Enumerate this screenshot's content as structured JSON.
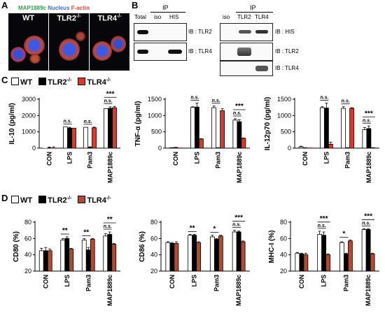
{
  "panelA": {
    "label": "A",
    "stain": [
      {
        "text": "MAP1889c",
        "color": "#2aa84a"
      },
      {
        "text": "Nucleus",
        "color": "#3a6fe0"
      },
      {
        "text": "F-actin",
        "color": "#e0483a"
      }
    ],
    "images": [
      {
        "title": "WT",
        "sup": ""
      },
      {
        "title": "TLR2",
        "sup": "-/-"
      },
      {
        "title": "TLR4",
        "sup": "-/-"
      }
    ]
  },
  "panelB": {
    "label": "B",
    "left": {
      "ip": "IP",
      "cols": [
        "Total",
        "iso",
        "HIS"
      ],
      "rows": [
        "IB : TLR2",
        "IB : TLR4"
      ]
    },
    "right": {
      "ip": "IP",
      "cols": [
        "iso",
        "TLR2",
        "TLR4"
      ],
      "rows": [
        "IB : HIS",
        "IB : TLR2",
        "IB : TLR4"
      ]
    }
  },
  "legend": {
    "items": [
      {
        "text": "WT",
        "sup": "",
        "color": "#ffffff"
      },
      {
        "text": "TLR2",
        "sup": "-/-",
        "color": "#000000"
      },
      {
        "text": "TLR4",
        "sup": "-/-",
        "color": "#d93a2b"
      }
    ],
    "itemsD": [
      {
        "text": "WT",
        "sup": "",
        "color": "#ffffff"
      },
      {
        "text": "TLR2",
        "sup": "-/-",
        "color": "#000000"
      },
      {
        "text": "TLR4",
        "sup": "-/-",
        "color": "#b04a33"
      }
    ]
  },
  "chart_data": [
    {
      "panel": "C",
      "type": "bar",
      "ylabel": "IL-10 (pg/ml)",
      "ylim": [
        0,
        3000
      ],
      "yticks": [
        0,
        1000,
        2000,
        3000
      ],
      "categories": [
        "CON",
        "LPS",
        "Pam3",
        "MAP1889c"
      ],
      "series": [
        {
          "name": "WT",
          "values": [
            0,
            1300,
            1280,
            2420
          ]
        },
        {
          "name": "TLR2-/-",
          "values": [
            0,
            1230,
            60,
            2440
          ]
        },
        {
          "name": "TLR4-/-",
          "values": [
            0,
            1220,
            1250,
            2480
          ]
        }
      ],
      "errors": [
        [
          0,
          0,
          0,
          0
        ],
        [
          70,
          50,
          20,
          90
        ],
        [
          80,
          0,
          40,
          80
        ]
      ],
      "annotations": [
        {
          "cat": 1,
          "text": "n.s.",
          "level": 0
        },
        {
          "cat": 2,
          "text": "n.s.",
          "level": 0
        },
        {
          "cat": 3,
          "text": "***",
          "level": 1
        },
        {
          "cat": 3,
          "text": "n.s.",
          "level": 0
        }
      ]
    },
    {
      "panel": "C",
      "type": "bar",
      "ylabel": "TNF-α (pg/ml)",
      "ylim": [
        0,
        1500
      ],
      "yticks": [
        0,
        500,
        1000,
        1500
      ],
      "categories": [
        "CON",
        "LPS",
        "Pam3",
        "MAP1889c"
      ],
      "series": [
        {
          "name": "WT",
          "values": [
            10,
            1250,
            1240,
            860
          ]
        },
        {
          "name": "TLR2-/-",
          "values": [
            20,
            1260,
            0,
            810
          ]
        },
        {
          "name": "TLR4-/-",
          "values": [
            0,
            280,
            1150,
            300
          ]
        }
      ],
      "errors": [
        [
          5,
          20,
          50,
          40
        ],
        [
          5,
          120,
          0,
          60
        ],
        [
          0,
          10,
          60,
          10
        ]
      ],
      "annotations": [
        {
          "cat": 1,
          "text": "n.s.",
          "level": 0
        },
        {
          "cat": 2,
          "text": "n.s.",
          "level": 0
        },
        {
          "cat": 3,
          "text": "***",
          "level": 1
        },
        {
          "cat": 3,
          "text": "n.s.",
          "level": 0
        }
      ]
    },
    {
      "panel": "C",
      "type": "bar",
      "ylabel": "IL-12p70 (pg/ml)",
      "ylim": [
        0,
        1500
      ],
      "yticks": [
        0,
        500,
        1000,
        1500
      ],
      "categories": [
        "CON",
        "LPS",
        "Pam3",
        "MAP1889c"
      ],
      "series": [
        {
          "name": "WT",
          "values": [
            40,
            1240,
            1220,
            570
          ]
        },
        {
          "name": "TLR2-/-",
          "values": [
            0,
            1230,
            0,
            600
          ]
        },
        {
          "name": "TLR4-/-",
          "values": [
            0,
            120,
            1220,
            10
          ]
        }
      ],
      "errors": [
        [
          20,
          30,
          50,
          60
        ],
        [
          0,
          150,
          0,
          80
        ],
        [
          0,
          60,
          20,
          5
        ]
      ],
      "annotations": [
        {
          "cat": 1,
          "text": "n.s.",
          "level": 0
        },
        {
          "cat": 2,
          "text": "n.s.",
          "level": 0
        },
        {
          "cat": 3,
          "text": "***",
          "level": 1
        },
        {
          "cat": 3,
          "text": "n.s.",
          "level": 0
        }
      ]
    },
    {
      "panel": "D",
      "type": "bar",
      "ylabel": "CD80 (%)",
      "ylim": [
        20,
        80
      ],
      "yticks": [
        20,
        40,
        60,
        80
      ],
      "categories": [
        "CON",
        "LPS",
        "Pam3",
        "MAP1889c"
      ],
      "series": [
        {
          "name": "WT",
          "values": [
            45,
            58,
            58,
            63
          ]
        },
        {
          "name": "TLR2-/-",
          "values": [
            45,
            60,
            46,
            65
          ]
        },
        {
          "name": "TLR4-/-",
          "values": [
            45,
            47,
            59,
            53
          ]
        }
      ],
      "errors": [
        [
          3,
          2,
          2,
          3
        ],
        [
          4,
          2,
          3,
          3
        ],
        [
          2,
          1,
          1,
          1
        ]
      ],
      "annotations": [
        {
          "cat": 1,
          "text": "**",
          "level": 0
        },
        {
          "cat": 2,
          "text": "**",
          "level": 0
        },
        {
          "cat": 3,
          "text": "**",
          "level": 1
        },
        {
          "cat": 3,
          "text": "n.s.",
          "level": 0
        }
      ]
    },
    {
      "panel": "D",
      "type": "bar",
      "ylabel": "CD86 (%)",
      "ylim": [
        20,
        80
      ],
      "yticks": [
        20,
        40,
        60,
        80
      ],
      "categories": [
        "CON",
        "LPS",
        "Pam3",
        "MAP1889c"
      ],
      "series": [
        {
          "name": "WT",
          "values": [
            55,
            64,
            62,
            68
          ]
        },
        {
          "name": "TLR2-/-",
          "values": [
            54,
            64,
            59,
            68
          ]
        },
        {
          "name": "TLR4-/-",
          "values": [
            54,
            55,
            63,
            56
          ]
        }
      ],
      "errors": [
        [
          1,
          1,
          2,
          2
        ],
        [
          1,
          1,
          1,
          1
        ],
        [
          2,
          1,
          1,
          1
        ]
      ],
      "annotations": [
        {
          "cat": 1,
          "text": "**",
          "level": 0
        },
        {
          "cat": 2,
          "text": "*",
          "level": 0
        },
        {
          "cat": 3,
          "text": "***",
          "level": 1
        },
        {
          "cat": 3,
          "text": "n.s.",
          "level": 0
        }
      ]
    },
    {
      "panel": "D",
      "type": "bar",
      "ylabel": "MHC-I (%)",
      "ylim": [
        20,
        80
      ],
      "yticks": [
        20,
        40,
        60,
        80
      ],
      "categories": [
        "CON",
        "LPS",
        "Pam3",
        "MAP1889c"
      ],
      "series": [
        {
          "name": "WT",
          "values": [
            42,
            65,
            55,
            71
          ]
        },
        {
          "name": "TLR2-/-",
          "values": [
            41,
            64,
            41,
            71
          ]
        },
        {
          "name": "TLR4-/-",
          "values": [
            40,
            40,
            57,
            41
          ]
        }
      ],
      "errors": [
        [
          1,
          4,
          1,
          1
        ],
        [
          1,
          4,
          1,
          1
        ],
        [
          2,
          1,
          1,
          1
        ]
      ],
      "annotations": [
        {
          "cat": 1,
          "text": "***",
          "level": 1
        },
        {
          "cat": 1,
          "text": "n.s.",
          "level": 0
        },
        {
          "cat": 2,
          "text": "*",
          "level": 0
        },
        {
          "cat": 3,
          "text": "***",
          "level": 1
        },
        {
          "cat": 3,
          "text": "n.s.",
          "level": 0
        }
      ]
    }
  ]
}
